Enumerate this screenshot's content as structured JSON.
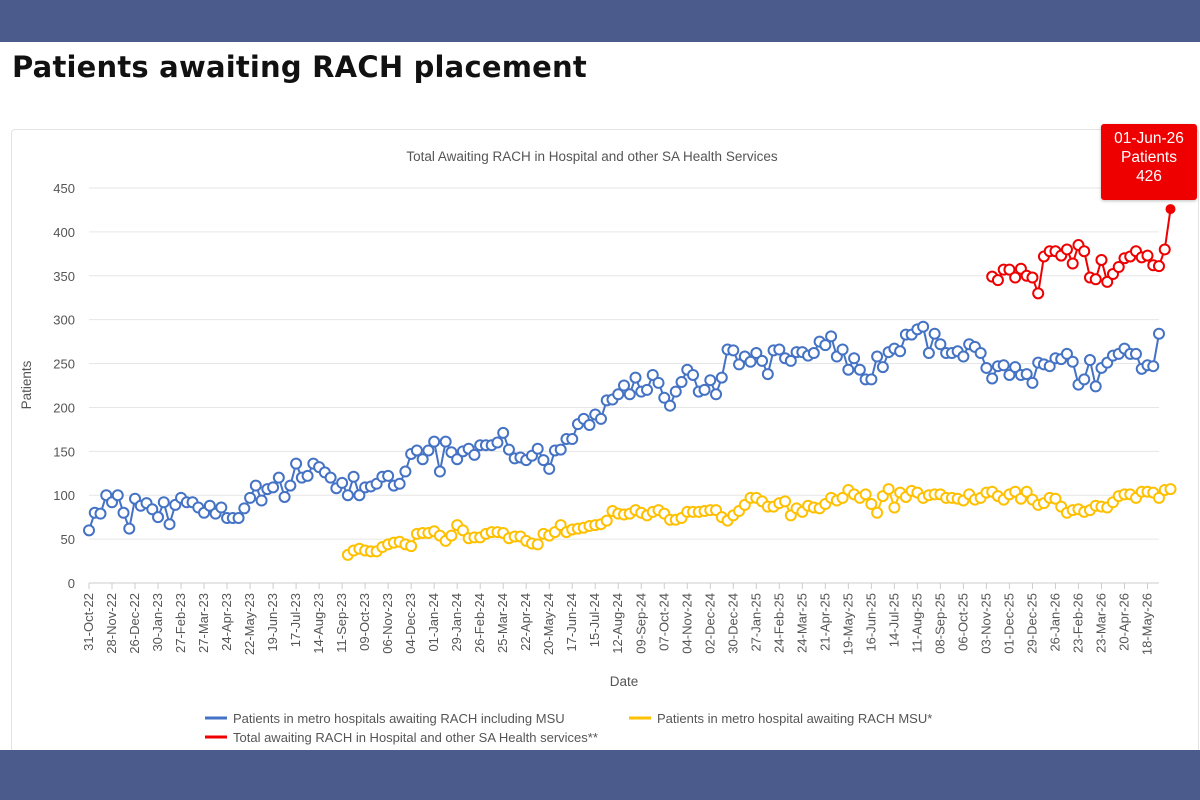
{
  "page": {
    "title": "Patients awaiting RACH placement"
  },
  "colors": {
    "band": "#4a5b8c",
    "metro": "#4472c4",
    "msu": "#ffc000",
    "total": "#ee0000"
  },
  "tooltip": {
    "date": "01-Jun-26",
    "label": "Patients",
    "value": "426"
  },
  "chart_data": {
    "type": "line",
    "title": "Total Awaiting RACH in Hospital and other SA Health Services",
    "xlabel": "Date",
    "ylabel": "Patients",
    "ylim": [
      0,
      450
    ],
    "yticks": [
      0,
      50,
      100,
      150,
      200,
      250,
      300,
      350,
      400,
      450
    ],
    "grid": true,
    "legend_position": "bottom",
    "x_start": "31-Oct-22",
    "x_step_days": 7,
    "xtick_labels": [
      "31-Oct-22",
      "28-Nov-22",
      "26-Dec-22",
      "30-Jan-23",
      "27-Feb-23",
      "27-Mar-23",
      "24-Apr-23",
      "22-May-23",
      "19-Jun-23",
      "17-Jul-23",
      "14-Aug-23",
      "11-Sep-23",
      "09-Oct-23",
      "06-Nov-23",
      "04-Dec-23",
      "01-Jan-24",
      "29-Jan-24",
      "26-Feb-24",
      "25-Mar-24",
      "22-Apr-24",
      "20-May-24",
      "17-Jun-24",
      "15-Jul-24",
      "12-Aug-24",
      "09-Sep-24",
      "07-Oct-24",
      "04-Nov-24",
      "02-Dec-24",
      "30-Dec-24",
      "27-Jan-25",
      "24-Feb-25",
      "24-Mar-25",
      "21-Apr-25",
      "19-May-25",
      "16-Jun-25",
      "14-Jul-25",
      "11-Aug-25",
      "08-Sep-25",
      "06-Oct-25",
      "03-Nov-25",
      "01-Dec-25",
      "29-Dec-25",
      "26-Jan-26",
      "23-Feb-26",
      "23-Mar-26",
      "20-Apr-26",
      "18-May-26"
    ],
    "series": [
      {
        "name": "Patients in metro hospitals awaiting RACH including MSU",
        "color": "#4472c4",
        "start_index": 0,
        "values": [
          60,
          80,
          79,
          100,
          92,
          100,
          80,
          62,
          96,
          88,
          91,
          84,
          75,
          92,
          67,
          89,
          97,
          92,
          92,
          86,
          80,
          88,
          79,
          86,
          74,
          74,
          74,
          85,
          97,
          111,
          94,
          107,
          109,
          120,
          98,
          111,
          136,
          120,
          122,
          136,
          132,
          126,
          120,
          108,
          114,
          100,
          121,
          100,
          109,
          110,
          113,
          121,
          122,
          111,
          113,
          127,
          147,
          151,
          141,
          151,
          161,
          127,
          161,
          149,
          141,
          150,
          153,
          146,
          157,
          157,
          157,
          160,
          171,
          152,
          142,
          143,
          140,
          145,
          153,
          140,
          130,
          151,
          152,
          164,
          164,
          181,
          187,
          180,
          192,
          187,
          208,
          209,
          215,
          225,
          215,
          234,
          218,
          220,
          237,
          228,
          211,
          202,
          218,
          229,
          243,
          237,
          218,
          220,
          231,
          215,
          234,
          266,
          265,
          249,
          258,
          252,
          262,
          253,
          238,
          265,
          266,
          256,
          253,
          263,
          263,
          259,
          262,
          275,
          271,
          281,
          258,
          266,
          243,
          256,
          243,
          232,
          232,
          258,
          246,
          263,
          267,
          264,
          283,
          283,
          289,
          292,
          262,
          284,
          272,
          262,
          262,
          264,
          258,
          272,
          269,
          262,
          245,
          233,
          247,
          248,
          237,
          246,
          237,
          238,
          228,
          251,
          249,
          247,
          256,
          255,
          261,
          252,
          226,
          232,
          254,
          224,
          245,
          251,
          259,
          261,
          267,
          261,
          261,
          244,
          248,
          247,
          284
        ]
      },
      {
        "name": "Patients in metro hospital awaiting RACH MSU*",
        "color": "#ffc000",
        "start_index": 45,
        "values": [
          32,
          37,
          39,
          37,
          36,
          36,
          41,
          44,
          46,
          47,
          44,
          42,
          56,
          57,
          57,
          59,
          54,
          48,
          54,
          66,
          60,
          51,
          52,
          52,
          56,
          58,
          58,
          57,
          51,
          53,
          53,
          48,
          45,
          44,
          56,
          54,
          58,
          66,
          58,
          61,
          62,
          63,
          65,
          66,
          67,
          71,
          82,
          79,
          78,
          79,
          83,
          80,
          77,
          81,
          83,
          79,
          72,
          72,
          74,
          81,
          81,
          81,
          82,
          83,
          83,
          75,
          71,
          77,
          82,
          89,
          97,
          97,
          93,
          87,
          87,
          91,
          93,
          77,
          85,
          81,
          88,
          86,
          85,
          90,
          97,
          94,
          97,
          106,
          101,
          97,
          101,
          90,
          80,
          99,
          107,
          86,
          103,
          98,
          105,
          103,
          97,
          100,
          101,
          101,
          97,
          97,
          96,
          94,
          101,
          95,
          97,
          103,
          104,
          99,
          95,
          101,
          104,
          96,
          104,
          95,
          89,
          91,
          97,
          96,
          87,
          80,
          83,
          84,
          81,
          83,
          88,
          87,
          86,
          92,
          99,
          101,
          101,
          97,
          104,
          104,
          103,
          97,
          106,
          107
        ]
      },
      {
        "name": "Total awaiting RACH in Hospital and other SA Health services**",
        "color": "#ee0000",
        "start_index": 157,
        "values": [
          349,
          345,
          357,
          357,
          348,
          358,
          350,
          348,
          330,
          372,
          378,
          378,
          373,
          380,
          364,
          385,
          378,
          348,
          346,
          368,
          343,
          352,
          360,
          370,
          372,
          378,
          371,
          373,
          362,
          361,
          380,
          426
        ]
      }
    ]
  },
  "legend": {
    "metro": "Patients in metro hospitals awaiting RACH including MSU",
    "msu": "Patients in metro hospital awaiting RACH MSU*",
    "total": "Total awaiting RACH in Hospital and other SA Health services**"
  }
}
